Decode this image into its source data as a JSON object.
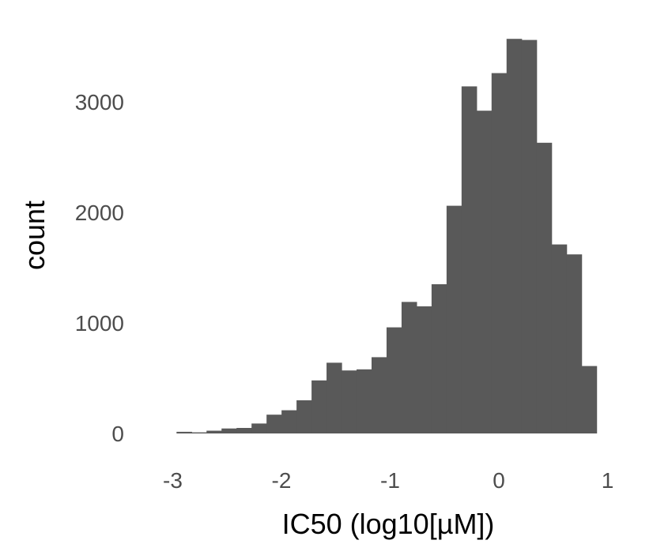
{
  "chart_data": {
    "type": "bar",
    "subtype": "histogram",
    "title": "",
    "xlabel": "IC50 (log10[µM])",
    "ylabel": "count",
    "xlim": [
      -3.1,
      1.1
    ],
    "ylim": [
      0,
      3600
    ],
    "x_ticks": [
      -3,
      -2,
      -1,
      0,
      1
    ],
    "x_tick_labels": [
      "-3",
      "-2",
      "-1",
      "0",
      "1"
    ],
    "y_ticks": [
      0,
      1000,
      2000,
      3000
    ],
    "y_tick_labels": [
      "0",
      "1000",
      "2000",
      "3000"
    ],
    "bin_start": -2.965,
    "bin_width": 0.138,
    "values": [
      15,
      10,
      25,
      45,
      50,
      90,
      170,
      210,
      300,
      480,
      640,
      570,
      580,
      690,
      960,
      1190,
      1150,
      1350,
      2060,
      3140,
      2920,
      3260,
      3570,
      3560,
      2630,
      1710,
      1620,
      610
    ],
    "bar_color": "#595959",
    "grid": false,
    "legend": "none"
  }
}
